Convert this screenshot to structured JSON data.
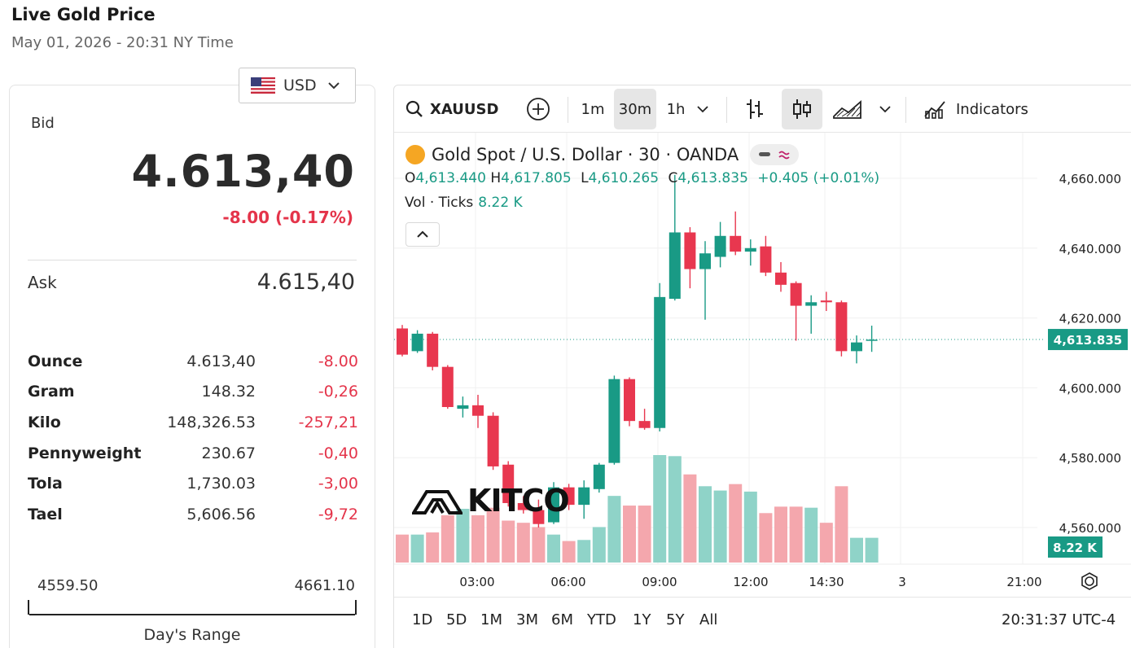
{
  "header": {
    "title": "Live Gold Price",
    "subtitle": "May 01, 2026 - 20:31 NY Time"
  },
  "currency": {
    "selected": "USD"
  },
  "quote": {
    "bid_label": "Bid",
    "bid": "4.613,40",
    "change": "-8.00 (-0.17%)",
    "ask_label": "Ask",
    "ask": "4.615,40"
  },
  "units": [
    {
      "name": "Ounce",
      "price": "4.613,40",
      "change": "-8.00"
    },
    {
      "name": "Gram",
      "price": "148.32",
      "change": "-0,26"
    },
    {
      "name": "Kilo",
      "price": "148,326.53",
      "change": "-257,21"
    },
    {
      "name": "Pennyweight",
      "price": "230.67",
      "change": "-0,40"
    },
    {
      "name": "Tola",
      "price": "1,730.03",
      "change": "-3,00"
    },
    {
      "name": "Tael",
      "price": "5,606.56",
      "change": "-9,72"
    }
  ],
  "day_range": {
    "low": "4559.50",
    "high": "4661.10",
    "label": "Day's Range"
  },
  "chart": {
    "symbol": "XAUUSD",
    "intervals": [
      "1m",
      "30m",
      "1h"
    ],
    "active_interval": "30m",
    "indicators_label": "Indicators",
    "legend_title": "Gold Spot / U.S. Dollar · 30 · OANDA",
    "ohlc": {
      "o_label": "O",
      "o": "4,613.440",
      "h_label": "H",
      "h": "4,617.805",
      "l_label": "L",
      "l": "4,610.265",
      "c_label": "C",
      "c": "4,613.835",
      "chg": "+0.405 (+0.01%)"
    },
    "volume_label": "Vol · Ticks",
    "volume": "8.22 K",
    "watermark": "KITCO",
    "ranges": [
      "1D",
      "5D",
      "1M",
      "3M",
      "6M",
      "YTD",
      "1Y",
      "5Y",
      "All"
    ],
    "clock": "20:31:37 UTC-4",
    "colors": {
      "up": "#199a85",
      "down": "#e8374f",
      "up_vol": "#8fd3c8",
      "down_vol": "#f4a7ad"
    }
  },
  "chart_data": {
    "type": "candlestick",
    "y_ticks": [
      "4,660.000",
      "4,640.000",
      "4,620.000",
      "4,600.000",
      "4,580.000",
      "4,560.000"
    ],
    "x_ticks": [
      "03:00",
      "06:00",
      "09:00",
      "12:00",
      "14:30",
      "3",
      "21:00"
    ],
    "ylim": [
      4551,
      4666
    ],
    "last_price": "4,613.835",
    "last_price_value": 4613.835,
    "last_volume": "8.22 K",
    "candles": [
      {
        "o": 4617.0,
        "h": 4618.0,
        "l": 4609.0,
        "c": 4609.5
      },
      {
        "o": 4610.5,
        "h": 4616.5,
        "l": 4610.0,
        "c": 4615.5
      },
      {
        "o": 4615.5,
        "h": 4616.0,
        "l": 4605.0,
        "c": 4606.0
      },
      {
        "o": 4606.0,
        "h": 4606.5,
        "l": 4594.0,
        "c": 4594.5
      },
      {
        "o": 4594.0,
        "h": 4597.5,
        "l": 4591.5,
        "c": 4595.0
      },
      {
        "o": 4595.0,
        "h": 4598.0,
        "l": 4588.5,
        "c": 4592.0
      },
      {
        "o": 4592.0,
        "h": 4593.0,
        "l": 4576.5,
        "c": 4577.5
      },
      {
        "o": 4578.0,
        "h": 4579.0,
        "l": 4566.0,
        "c": 4567.0
      },
      {
        "o": 4567.0,
        "h": 4569.0,
        "l": 4564.0,
        "c": 4565.0
      },
      {
        "o": 4565.0,
        "h": 4568.0,
        "l": 4560.0,
        "c": 4561.0
      },
      {
        "o": 4561.5,
        "h": 4573.0,
        "l": 4561.0,
        "c": 4571.5
      },
      {
        "o": 4571.5,
        "h": 4572.5,
        "l": 4565.0,
        "c": 4566.5
      },
      {
        "o": 4566.5,
        "h": 4573.5,
        "l": 4562.5,
        "c": 4571.5
      },
      {
        "o": 4571.0,
        "h": 4578.5,
        "l": 4570.0,
        "c": 4578.0
      },
      {
        "o": 4578.5,
        "h": 4603.5,
        "l": 4578.0,
        "c": 4602.5
      },
      {
        "o": 4602.5,
        "h": 4603.0,
        "l": 4589.0,
        "c": 4590.5
      },
      {
        "o": 4590.5,
        "h": 4594.0,
        "l": 4588.0,
        "c": 4588.5
      },
      {
        "o": 4588.5,
        "h": 4630.0,
        "l": 4587.5,
        "c": 4626.0
      },
      {
        "o": 4625.5,
        "h": 4661.0,
        "l": 4625.0,
        "c": 4644.5
      },
      {
        "o": 4644.5,
        "h": 4646.0,
        "l": 4628.5,
        "c": 4634.0
      },
      {
        "o": 4634.0,
        "h": 4642.0,
        "l": 4619.5,
        "c": 4638.5
      },
      {
        "o": 4637.5,
        "h": 4647.5,
        "l": 4634.5,
        "c": 4643.5
      },
      {
        "o": 4643.5,
        "h": 4650.5,
        "l": 4638.0,
        "c": 4639.0
      },
      {
        "o": 4639.0,
        "h": 4642.5,
        "l": 4635.0,
        "c": 4640.0
      },
      {
        "o": 4640.5,
        "h": 4643.5,
        "l": 4632.0,
        "c": 4633.0
      },
      {
        "o": 4633.0,
        "h": 4636.0,
        "l": 4627.5,
        "c": 4629.5
      },
      {
        "o": 4630.0,
        "h": 4630.5,
        "l": 4613.5,
        "c": 4623.5
      },
      {
        "o": 4623.5,
        "h": 4626.5,
        "l": 4615.5,
        "c": 4624.5
      },
      {
        "o": 4625.0,
        "h": 4627.5,
        "l": 4622.0,
        "c": 4624.5
      },
      {
        "o": 4624.5,
        "h": 4625.0,
        "l": 4609.0,
        "c": 4610.5
      },
      {
        "o": 4610.5,
        "h": 4615.0,
        "l": 4607.0,
        "c": 4613.0
      },
      {
        "o": 4613.5,
        "h": 4617.8,
        "l": 4610.3,
        "c": 4613.8
      }
    ],
    "volumes": [
      0.26,
      0.26,
      0.28,
      0.44,
      0.5,
      0.44,
      0.51,
      0.39,
      0.37,
      0.33,
      0.26,
      0.2,
      0.21,
      0.33,
      0.62,
      0.53,
      0.53,
      1.0,
      0.99,
      0.82,
      0.71,
      0.67,
      0.73,
      0.66,
      0.46,
      0.52,
      0.52,
      0.51,
      0.37,
      0.71,
      0.23,
      0.23
    ]
  }
}
